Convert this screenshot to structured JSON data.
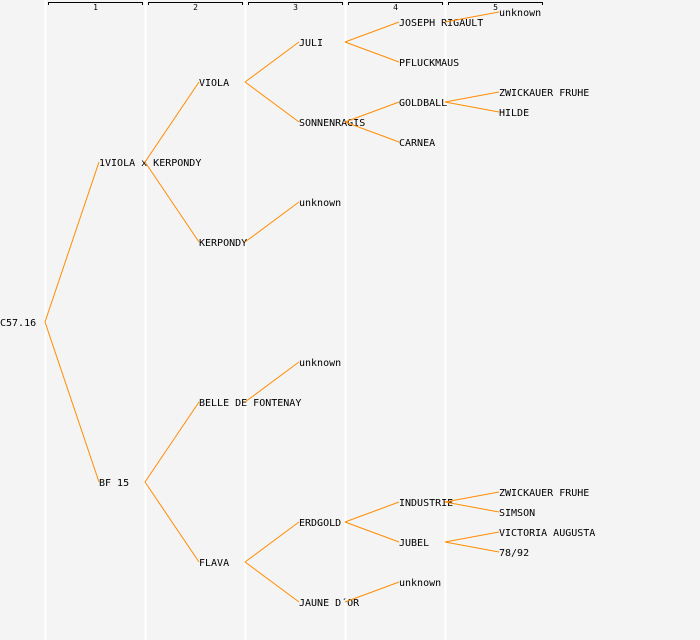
{
  "generations": [
    "1",
    "2",
    "3",
    "4",
    "5"
  ],
  "colors": {
    "line": "#ff8c00",
    "highlight": "#0000ff",
    "text": "#000000",
    "background": "#f4f4f4"
  },
  "tree": {
    "name": "C57.16",
    "parents": [
      {
        "name": "1VIOLA x KERPONDY",
        "parents": [
          {
            "name": "VIOLA",
            "highlight": true,
            "parents": [
              {
                "name": "JULI",
                "parents": [
                  {
                    "name": "JOSEPH RIGAULT",
                    "parents": [
                      {
                        "name": "unknown"
                      },
                      null
                    ]
                  },
                  {
                    "name": "PFLUCKMAUS"
                  }
                ]
              },
              {
                "name": "SONNENRAGIS",
                "parents": [
                  {
                    "name": "GOLDBALL",
                    "parents": [
                      {
                        "name": "ZWICKAUER FRUHE"
                      },
                      {
                        "name": "HILDE"
                      }
                    ]
                  },
                  {
                    "name": "CARNEA"
                  }
                ]
              }
            ]
          },
          {
            "name": "KERPONDY",
            "parents": [
              {
                "name": "unknown"
              },
              null
            ]
          }
        ]
      },
      {
        "name": "BF 15",
        "parents": [
          {
            "name": "BELLE DE FONTENAY",
            "parents": [
              {
                "name": "unknown"
              },
              null
            ]
          },
          {
            "name": "FLAVA",
            "parents": [
              {
                "name": "ERDGOLD",
                "parents": [
                  {
                    "name": "INDUSTRIE",
                    "parents": [
                      {
                        "name": "ZWICKAUER FRUHE"
                      },
                      {
                        "name": "SIMSON"
                      }
                    ]
                  },
                  {
                    "name": "JUBEL",
                    "parents": [
                      {
                        "name": "VICTORIA AUGUSTA"
                      },
                      {
                        "name": "78/92"
                      }
                    ]
                  }
                ]
              },
              {
                "name": "JAUNE D´OR",
                "parents": [
                  {
                    "name": "unknown"
                  },
                  null
                ]
              }
            ]
          }
        ]
      }
    ]
  }
}
